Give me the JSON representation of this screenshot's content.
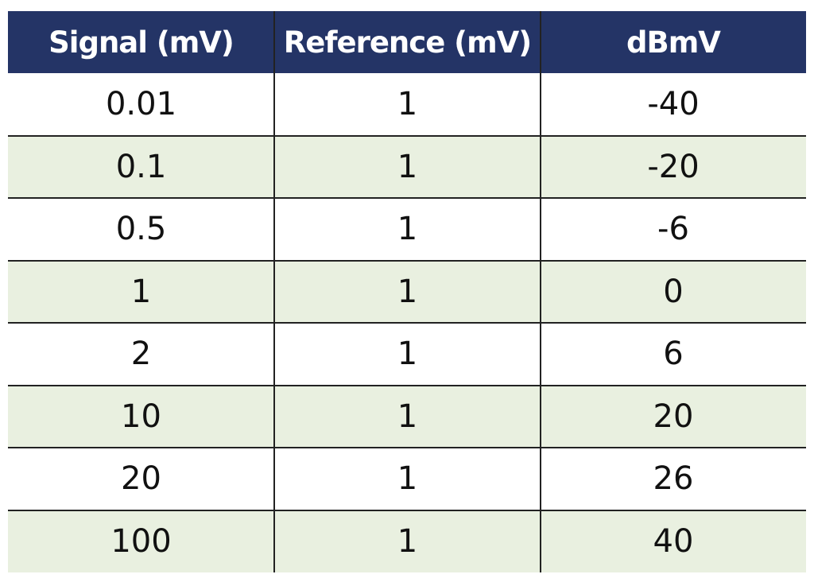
{
  "table": {
    "header": [
      "Signal (mV)",
      "Reference (mV)",
      "dBmV"
    ],
    "rows": [
      [
        "0.01",
        "1",
        "-40"
      ],
      [
        "0.1",
        "1",
        "-20"
      ],
      [
        "0.5",
        "1",
        "-6"
      ],
      [
        "1",
        "1",
        "0"
      ],
      [
        "2",
        "1",
        "6"
      ],
      [
        "10",
        "1",
        "20"
      ],
      [
        "20",
        "1",
        "26"
      ],
      [
        "100",
        "1",
        "40"
      ]
    ]
  }
}
